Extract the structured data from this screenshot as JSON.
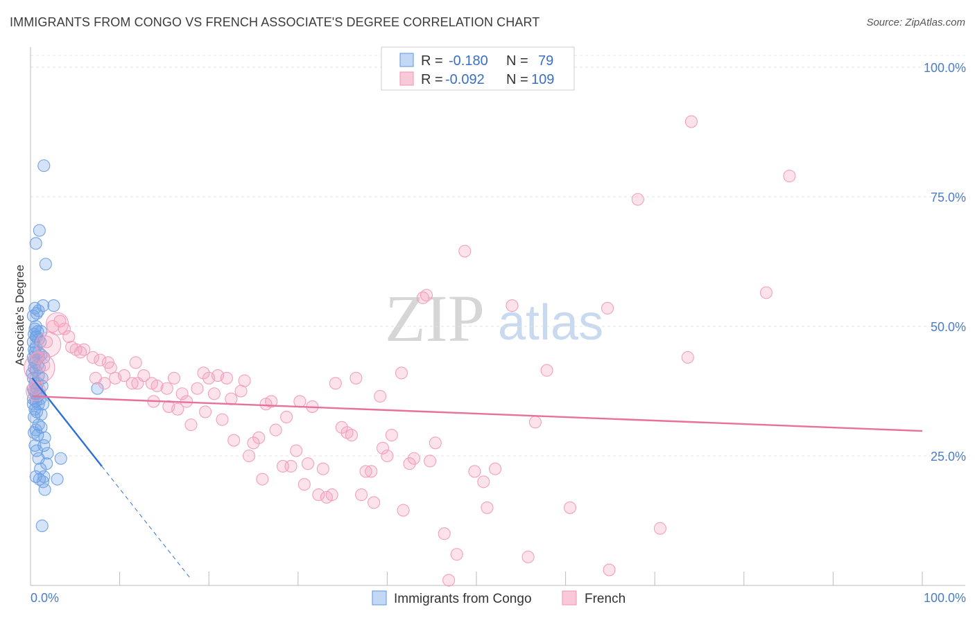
{
  "title": "IMMIGRANTS FROM CONGO VS FRENCH ASSOCIATE'S DEGREE CORRELATION CHART",
  "source": "Source: ZipAtlas.com",
  "watermark": {
    "zip": "ZIP",
    "atlas": "atlas"
  },
  "chart_data": {
    "type": "scatter",
    "ylabel": "Associate's Degree",
    "xlim": [
      0,
      100
    ],
    "ylim": [
      0,
      100
    ],
    "x_tick_labels": {
      "left": "0.0%",
      "right": "100.0%"
    },
    "y_ticks": [
      {
        "value": 100,
        "label": "100.0%"
      },
      {
        "value": 75,
        "label": "75.0%"
      },
      {
        "value": 50,
        "label": "50.0%"
      },
      {
        "value": 25,
        "label": "25.0%"
      }
    ],
    "legend": {
      "rows": [
        {
          "r_label": "R = ",
          "r_value": "-0.180",
          "n_label": "N = ",
          "n_value": "79"
        },
        {
          "r_label": "R = ",
          "r_value": "-0.092",
          "n_label": "N = ",
          "n_value": "109"
        }
      ]
    },
    "series": [
      {
        "name": "Immigrants from Congo",
        "color": "#6fa3e6",
        "trend_color": "#2e6fd6",
        "trend": {
          "x0": 0.2,
          "y0": 40.0,
          "x1": 8.0,
          "y1": 23.0,
          "dash_x1": 18.0
        },
        "points": [
          [
            1.5,
            81
          ],
          [
            1.0,
            68.5
          ],
          [
            0.6,
            66
          ],
          [
            1.7,
            62
          ],
          [
            1.4,
            54
          ],
          [
            2.6,
            54
          ],
          [
            0.5,
            53.5
          ],
          [
            0.7,
            52.5
          ],
          [
            0.3,
            52
          ],
          [
            0.5,
            49.5
          ],
          [
            0.8,
            49
          ],
          [
            1.2,
            49
          ],
          [
            0.4,
            48.5
          ],
          [
            0.6,
            48
          ],
          [
            0.9,
            47.5
          ],
          [
            0.3,
            47
          ],
          [
            0.6,
            46
          ],
          [
            0.4,
            45.5
          ],
          [
            0.9,
            45
          ],
          [
            1.2,
            44.5
          ],
          [
            1.5,
            44
          ],
          [
            0.3,
            44
          ],
          [
            0.5,
            43
          ],
          [
            0.8,
            42.5
          ],
          [
            0.4,
            42
          ],
          [
            0.6,
            41.5
          ],
          [
            0.9,
            40.5
          ],
          [
            0.3,
            40
          ],
          [
            0.5,
            39
          ],
          [
            1.3,
            38.5
          ],
          [
            0.7,
            38
          ],
          [
            0.4,
            37.5
          ],
          [
            1.0,
            37
          ],
          [
            0.8,
            36.5
          ],
          [
            1.1,
            36
          ],
          [
            0.6,
            35.5
          ],
          [
            0.9,
            35
          ],
          [
            0.3,
            35
          ],
          [
            1.4,
            35
          ],
          [
            0.5,
            34
          ],
          [
            0.7,
            33.5
          ],
          [
            0.4,
            32.5
          ],
          [
            0.9,
            31
          ],
          [
            1.2,
            30.5
          ],
          [
            0.6,
            30
          ],
          [
            0.8,
            29
          ],
          [
            1.6,
            28.5
          ],
          [
            0.5,
            27
          ],
          [
            1.5,
            27
          ],
          [
            0.7,
            26
          ],
          [
            1.9,
            25.5
          ],
          [
            0.9,
            24.5
          ],
          [
            3.4,
            24.5
          ],
          [
            1.8,
            23.5
          ],
          [
            1.1,
            22.5
          ],
          [
            0.6,
            21
          ],
          [
            1.0,
            20.5
          ],
          [
            1.4,
            20
          ],
          [
            3.0,
            20.5
          ],
          [
            1.6,
            18.5
          ],
          [
            1.3,
            11.5
          ],
          [
            7.5,
            38
          ],
          [
            0.2,
            41
          ],
          [
            0.4,
            43.5
          ],
          [
            1.1,
            47
          ],
          [
            0.6,
            50
          ],
          [
            0.9,
            53
          ],
          [
            0.3,
            36
          ],
          [
            0.5,
            45
          ],
          [
            0.8,
            39
          ],
          [
            1.2,
            33
          ],
          [
            0.4,
            29.5
          ],
          [
            0.7,
            48
          ],
          [
            1.0,
            42
          ],
          [
            0.3,
            38
          ],
          [
            0.6,
            37
          ],
          [
            1.3,
            40
          ],
          [
            0.9,
            44
          ],
          [
            1.5,
            21
          ]
        ]
      },
      {
        "name": "French",
        "color": "#f2a0bd",
        "trend_color": "#e8709a",
        "trend": {
          "x0": 0.2,
          "y0": 36.5,
          "x1": 100,
          "y1": 29.8
        },
        "points": [
          [
            0.5,
            38
          ],
          [
            0.8,
            44
          ],
          [
            1.5,
            42.5
          ],
          [
            1.8,
            47
          ],
          [
            2.5,
            50
          ],
          [
            3.3,
            51
          ],
          [
            3.8,
            49.5
          ],
          [
            4.3,
            48
          ],
          [
            4.6,
            46
          ],
          [
            5.1,
            45.5
          ],
          [
            5.6,
            45
          ],
          [
            6.0,
            45.5
          ],
          [
            7.0,
            44
          ],
          [
            7.3,
            40
          ],
          [
            7.8,
            43.5
          ],
          [
            8.3,
            39
          ],
          [
            8.7,
            43
          ],
          [
            9.0,
            42
          ],
          [
            9.5,
            40
          ],
          [
            10.5,
            40.5
          ],
          [
            11.4,
            39
          ],
          [
            11.8,
            43
          ],
          [
            12.0,
            39
          ],
          [
            12.7,
            40.5
          ],
          [
            13.6,
            39
          ],
          [
            13.8,
            35.5
          ],
          [
            14.2,
            38.5
          ],
          [
            15.3,
            38
          ],
          [
            15.5,
            34.5
          ],
          [
            16.1,
            40
          ],
          [
            16.5,
            34
          ],
          [
            17.0,
            37
          ],
          [
            17.5,
            35.5
          ],
          [
            18.0,
            31
          ],
          [
            18.7,
            38
          ],
          [
            19.4,
            41
          ],
          [
            19.6,
            33.5
          ],
          [
            20.0,
            40
          ],
          [
            20.6,
            37
          ],
          [
            21.0,
            40.5
          ],
          [
            21.5,
            32
          ],
          [
            22.0,
            40
          ],
          [
            22.5,
            36
          ],
          [
            22.8,
            28
          ],
          [
            23.6,
            37.5
          ],
          [
            24.0,
            39.5
          ],
          [
            24.5,
            25
          ],
          [
            25.0,
            27.5
          ],
          [
            25.6,
            28.5
          ],
          [
            26.0,
            20.5
          ],
          [
            26.4,
            35
          ],
          [
            27.0,
            35.5
          ],
          [
            27.5,
            30
          ],
          [
            28.3,
            23
          ],
          [
            28.7,
            32.5
          ],
          [
            29.2,
            23
          ],
          [
            29.8,
            26
          ],
          [
            30.2,
            35.5
          ],
          [
            30.7,
            19.5
          ],
          [
            31.1,
            23.5
          ],
          [
            31.6,
            34.5
          ],
          [
            32.3,
            17.5
          ],
          [
            32.8,
            22.5
          ],
          [
            33.2,
            17
          ],
          [
            33.8,
            17.5
          ],
          [
            34.2,
            39
          ],
          [
            34.9,
            30.5
          ],
          [
            35.5,
            29.5
          ],
          [
            36.0,
            29
          ],
          [
            36.5,
            40
          ],
          [
            37.1,
            17.5
          ],
          [
            37.6,
            22
          ],
          [
            38.5,
            16
          ],
          [
            38.2,
            22
          ],
          [
            39.2,
            36.5
          ],
          [
            39.5,
            26.5
          ],
          [
            40.0,
            25
          ],
          [
            40.5,
            29
          ],
          [
            41.6,
            41
          ],
          [
            41.8,
            14.5
          ],
          [
            42.5,
            23.5
          ],
          [
            43.0,
            24.5
          ],
          [
            44.0,
            55.5
          ],
          [
            44.4,
            56
          ],
          [
            44.8,
            24
          ],
          [
            45.4,
            27.5
          ],
          [
            46.4,
            10
          ],
          [
            46.9,
            1
          ],
          [
            47.8,
            6
          ],
          [
            48.7,
            64.5
          ],
          [
            49.8,
            22
          ],
          [
            50.8,
            20
          ],
          [
            51.2,
            15
          ],
          [
            52.1,
            22.5
          ],
          [
            54.0,
            54
          ],
          [
            55.8,
            5.5
          ],
          [
            56.6,
            31.5
          ],
          [
            57.9,
            41.5
          ],
          [
            60.5,
            15
          ],
          [
            64.7,
            53.5
          ],
          [
            64.9,
            3
          ],
          [
            68.1,
            74.5
          ],
          [
            70.6,
            11
          ],
          [
            73.7,
            44
          ],
          [
            74.1,
            89.5
          ],
          [
            82.5,
            56.5
          ],
          [
            85.1,
            79
          ]
        ],
        "big_points": [
          [
            1.0,
            42.0,
            "22"
          ],
          [
            2.0,
            46.5,
            "18"
          ],
          [
            3.0,
            50.5,
            "16"
          ],
          [
            0.6,
            37.5,
            "14"
          ]
        ]
      }
    ]
  }
}
